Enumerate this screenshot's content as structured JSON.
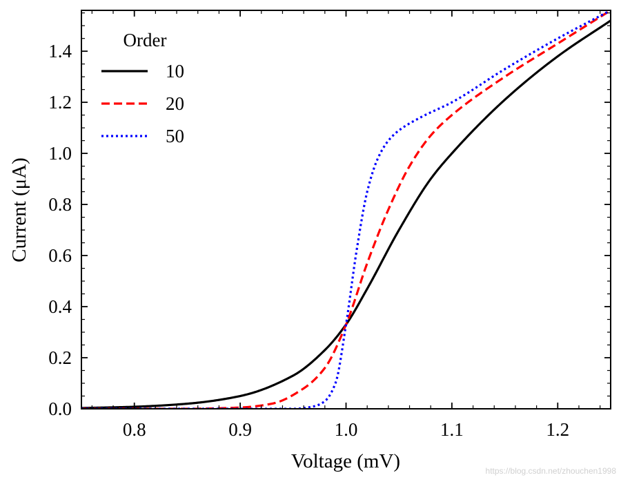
{
  "chart_data": {
    "type": "line",
    "xlabel": "Voltage (mV)",
    "ylabel": "Current (μA)",
    "xlim": [
      0.75,
      1.25
    ],
    "ylim": [
      0.0,
      1.56
    ],
    "x_ticks": [
      0.8,
      0.9,
      1.0,
      1.1,
      1.2
    ],
    "x_tick_labels": [
      "0.8",
      "0.9",
      "1.0",
      "1.1",
      "1.2"
    ],
    "y_ticks": [
      0.0,
      0.2,
      0.4,
      0.6,
      0.8,
      1.0,
      1.2,
      1.4
    ],
    "y_tick_labels": [
      "0.0",
      "0.2",
      "0.4",
      "0.6",
      "0.8",
      "1.0",
      "1.2",
      "1.4"
    ],
    "grid": false,
    "legend": {
      "title": "Order",
      "placement": "top-left"
    },
    "series": [
      {
        "name": "10",
        "color": "#000000",
        "style": "solid",
        "x": [
          0.75,
          0.8,
          0.85,
          0.9,
          0.95,
          0.98,
          1.0,
          1.02,
          1.05,
          1.08,
          1.1,
          1.15,
          1.2,
          1.25
        ],
        "y": [
          0.003,
          0.008,
          0.02,
          0.05,
          0.13,
          0.23,
          0.33,
          0.47,
          0.7,
          0.9,
          1.0,
          1.21,
          1.38,
          1.52
        ]
      },
      {
        "name": "20",
        "color": "#ff0000",
        "style": "dashed",
        "x": [
          0.75,
          0.85,
          0.9,
          0.93,
          0.96,
          0.98,
          1.0,
          1.02,
          1.04,
          1.06,
          1.08,
          1.1,
          1.15,
          1.2,
          1.25
        ],
        "y": [
          0.0,
          0.0,
          0.005,
          0.02,
          0.08,
          0.16,
          0.33,
          0.57,
          0.78,
          0.95,
          1.07,
          1.15,
          1.3,
          1.43,
          1.56
        ]
      },
      {
        "name": "50",
        "color": "#0000ff",
        "style": "dotted",
        "x": [
          0.75,
          0.95,
          0.97,
          0.98,
          0.99,
          1.0,
          1.01,
          1.02,
          1.03,
          1.04,
          1.05,
          1.07,
          1.1,
          1.15,
          1.2,
          1.25
        ],
        "y": [
          0.0,
          0.0,
          0.01,
          0.03,
          0.1,
          0.33,
          0.62,
          0.85,
          0.98,
          1.05,
          1.09,
          1.14,
          1.2,
          1.33,
          1.45,
          1.56
        ]
      }
    ]
  },
  "watermark": "https://blog.csdn.net/zhouchen1998"
}
